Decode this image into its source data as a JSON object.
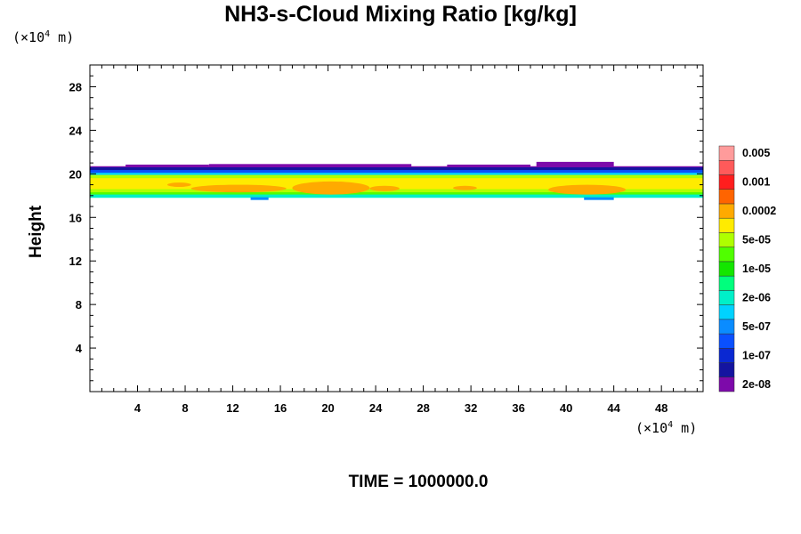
{
  "chart_data": {
    "type": "heatmap",
    "title": "NH3-s-Cloud Mixing Ratio [kg/kg]",
    "ylabel": "Height",
    "xlabel": "",
    "x_unit_prefix": "(×10",
    "x_unit_exp": "4",
    "x_unit_suffix": " m)",
    "y_unit_prefix": "(×10",
    "y_unit_exp": "4",
    "y_unit_suffix": " m)",
    "xlim": [
      0,
      51.5
    ],
    "ylim": [
      0,
      30
    ],
    "x_ticks": [
      4,
      8,
      12,
      16,
      20,
      24,
      28,
      32,
      36,
      40,
      44,
      48
    ],
    "y_ticks": [
      4,
      8,
      12,
      16,
      20,
      24,
      28
    ],
    "time_label": "TIME = 1000000.0",
    "colorbar": {
      "colors": [
        "#7d0aaa",
        "#1414a0",
        "#0a28d2",
        "#0a50ff",
        "#0a8cff",
        "#00d2ff",
        "#00f0c8",
        "#00ff7d",
        "#14e600",
        "#50ff00",
        "#afff00",
        "#ffeb00",
        "#ffaa00",
        "#ff6400",
        "#ff1e1e",
        "#ff5a5a",
        "#ff9b9b"
      ],
      "labels": [
        "2e-08",
        "1e-07",
        "5e-07",
        "2e-06",
        "1e-05",
        "5e-05",
        "0.0002",
        "0.001",
        "0.005"
      ]
    },
    "cloud_layer": {
      "base_height": 17.8,
      "top_height": 20.7,
      "core_value_range": "0.0002",
      "description_levels": [
        "2e-08",
        "1e-07",
        "5e-07",
        "2e-06",
        "1e-05",
        "5e-05",
        "0.0002"
      ]
    }
  }
}
